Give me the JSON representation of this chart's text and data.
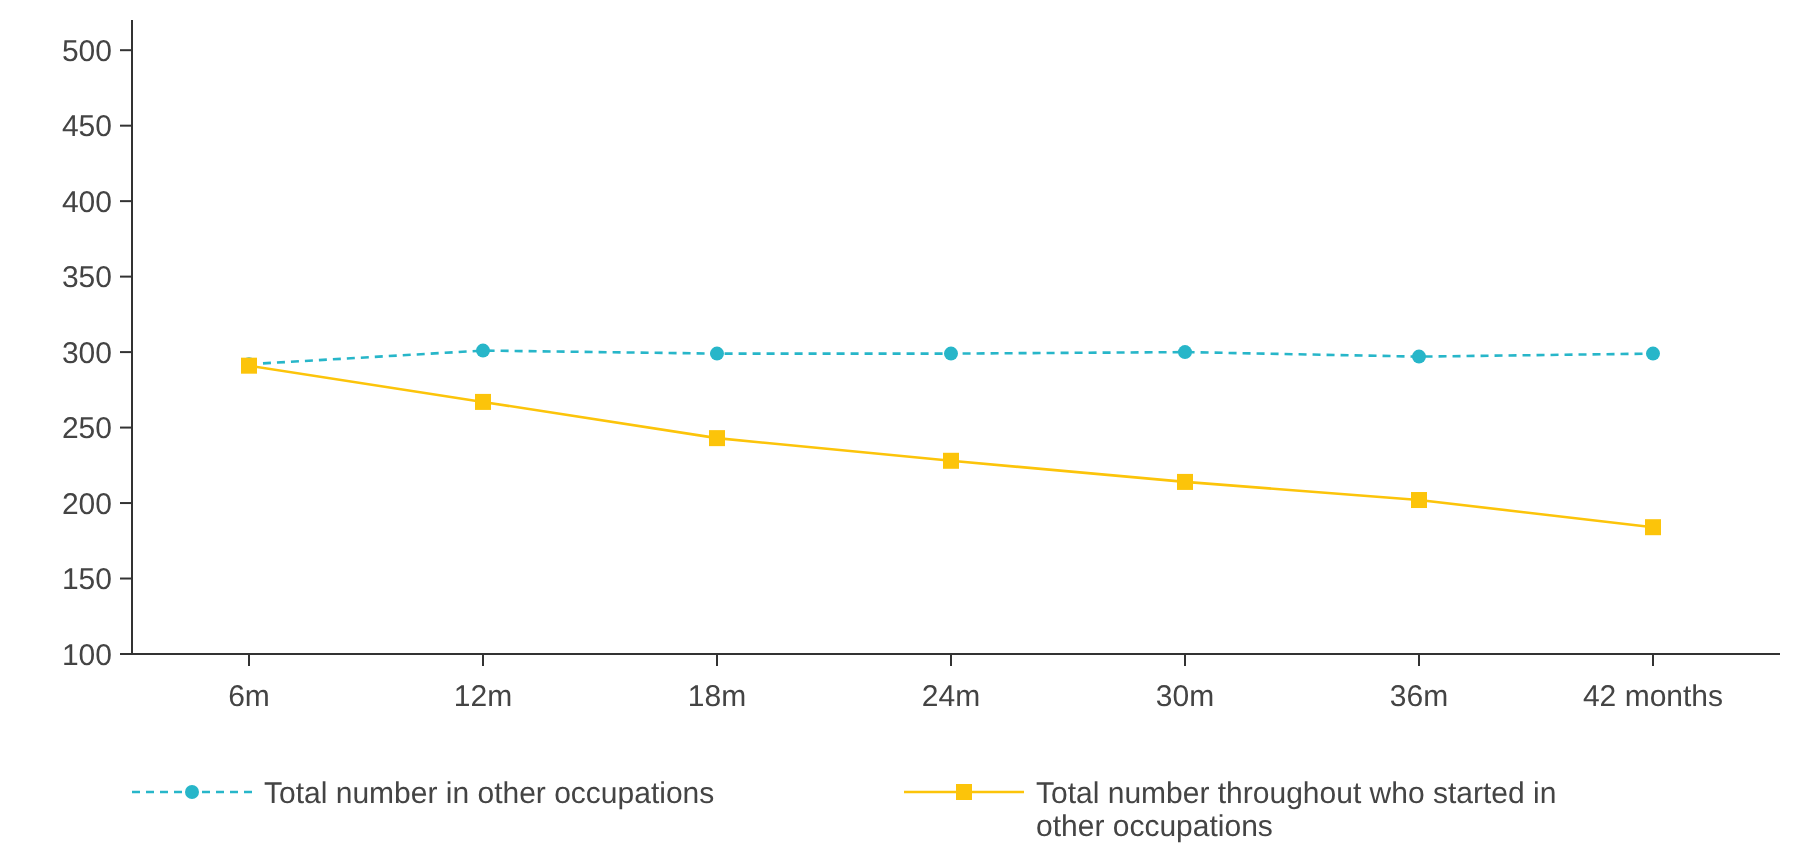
{
  "chart_data": {
    "type": "line",
    "categories": [
      "6m",
      "12m",
      "18m",
      "24m",
      "30m",
      "36m",
      "42 months"
    ],
    "series": [
      {
        "name": "Total number in other occupations",
        "color": "#27b6c9",
        "values": [
          292,
          301,
          299,
          299,
          300,
          297,
          299
        ],
        "marker": "circle",
        "line_style": "dashed"
      },
      {
        "name": "Total number throughout who started in other occupations",
        "color": "#fcc40a",
        "values": [
          291,
          267,
          243,
          228,
          214,
          202,
          184
        ],
        "marker": "square",
        "line_style": "solid"
      }
    ],
    "ylim": [
      100,
      520
    ],
    "yticks": [
      100,
      150,
      200,
      250,
      300,
      350,
      400,
      450,
      500
    ],
    "grid": false,
    "legend": "bottom"
  }
}
